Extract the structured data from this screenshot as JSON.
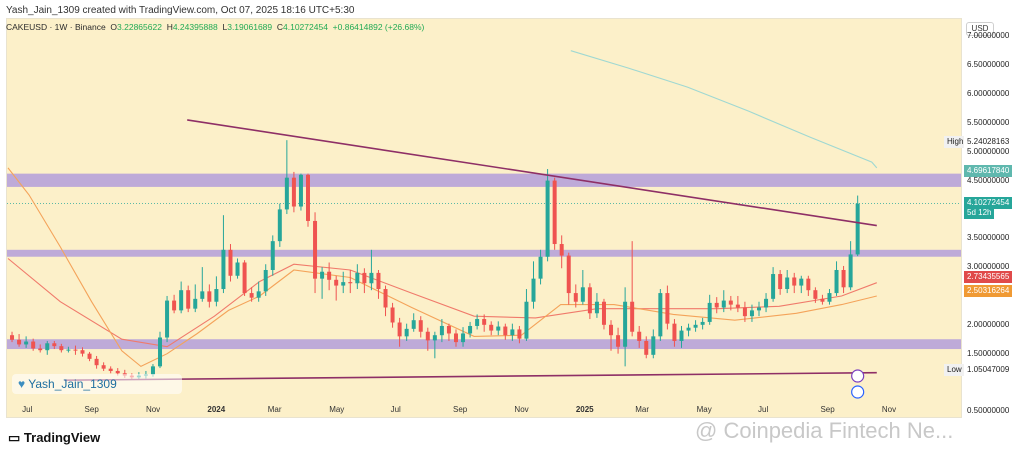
{
  "header": {
    "created_text": "Yash_Jain_1309 created with TradingView.com, Oct 07, 2025 18:16 UTC+5:30"
  },
  "ohlc": {
    "symbol": "CAKEUSD · 1W · Binance",
    "o_label": "O",
    "o": "3.22865622",
    "h_label": "H",
    "h": "4.24395888",
    "l_label": "L",
    "l": "3.19061689",
    "c_label": "C",
    "c": "4.10272454",
    "change": "+0.86414892 (+26.68%)"
  },
  "axis": {
    "currency": "USD",
    "ticks": [
      "7.00000000",
      "6.50000000",
      "6.00000000",
      "5.50000000",
      "5.00000000",
      "4.50000000",
      "3.50000000",
      "3.00000000",
      "2.00000000",
      "1.50000000",
      "0.50000000"
    ],
    "high_label": "High",
    "high_value": "5.24028163",
    "low_label": "Low",
    "low_value": "1.05047009",
    "ma200_value": "4.69617840",
    "price_value": "4.10272454",
    "countdown": "5d 12h",
    "ma50_value": "2.73435565",
    "ma20_value": "2.50316264"
  },
  "x_axis": [
    {
      "label": "Jul",
      "bold": false
    },
    {
      "label": "Sep",
      "bold": false
    },
    {
      "label": "Nov",
      "bold": false
    },
    {
      "label": "2024",
      "bold": true
    },
    {
      "label": "Mar",
      "bold": false
    },
    {
      "label": "May",
      "bold": false
    },
    {
      "label": "Jul",
      "bold": false
    },
    {
      "label": "Sep",
      "bold": false
    },
    {
      "label": "Nov",
      "bold": false
    },
    {
      "label": "2025",
      "bold": true
    },
    {
      "label": "Mar",
      "bold": false
    },
    {
      "label": "May",
      "bold": false
    },
    {
      "label": "Jul",
      "bold": false
    },
    {
      "label": "Sep",
      "bold": false
    },
    {
      "label": "Nov",
      "bold": false
    }
  ],
  "author_badge": "Yash_Jain_1309",
  "footer": {
    "logo": "TradingView",
    "watermark": "@ Coinpedia Fintech Ne..."
  },
  "colors": {
    "up": "#26a69a",
    "down": "#ef5350",
    "zone": "#b39ddb",
    "trend": "#8e2f66",
    "ma200": "#9fd8d2",
    "ma50": "#f07a6b",
    "ma20": "#f4a35a",
    "bg": "#fcf0c9"
  },
  "chart_data": {
    "type": "candlestick",
    "interval": "1W",
    "y_range": [
      0.5,
      7.3
    ],
    "x_range": [
      "2023-06-10",
      "2025-11-20"
    ],
    "last_price": 4.10272454,
    "zones": [
      {
        "from": 4.39,
        "to": 4.62
      },
      {
        "from": 3.18,
        "to": 3.3
      },
      {
        "from": 1.58,
        "to": 1.75
      }
    ],
    "trendlines": [
      {
        "from": {
          "date": "2023-12-05",
          "value": 5.55
        },
        "to": {
          "date": "2025-10-20",
          "value": 3.72
        }
      },
      {
        "from": {
          "date": "2023-08-05",
          "value": 1.04
        },
        "to": {
          "date": "2025-10-20",
          "value": 1.17
        }
      }
    ],
    "moving_averages": [
      {
        "name": "MA200",
        "points": [
          [
            "2024-12-20",
            6.75
          ],
          [
            "2025-02-15",
            6.45
          ],
          [
            "2025-04-15",
            6.12
          ],
          [
            "2025-06-15",
            5.7
          ],
          [
            "2025-08-15",
            5.25
          ],
          [
            "2025-10-15",
            4.82
          ],
          [
            "2025-10-20",
            4.72
          ]
        ]
      },
      {
        "name": "MA50",
        "points": [
          [
            "2023-06-10",
            3.15
          ],
          [
            "2023-08-01",
            2.4
          ],
          [
            "2023-10-01",
            1.75
          ],
          [
            "2023-11-15",
            1.62
          ],
          [
            "2024-01-01",
            2.15
          ],
          [
            "2024-02-15",
            2.75
          ],
          [
            "2024-03-20",
            3.05
          ],
          [
            "2024-05-15",
            2.95
          ],
          [
            "2024-07-15",
            2.55
          ],
          [
            "2024-09-15",
            2.15
          ],
          [
            "2024-11-15",
            2.12
          ],
          [
            "2025-01-15",
            2.28
          ],
          [
            "2025-03-15",
            2.28
          ],
          [
            "2025-05-15",
            2.28
          ],
          [
            "2025-07-15",
            2.32
          ],
          [
            "2025-09-15",
            2.5
          ],
          [
            "2025-10-20",
            2.73
          ]
        ]
      },
      {
        "name": "MA20",
        "points": [
          [
            "2023-06-10",
            4.72
          ],
          [
            "2023-07-01",
            4.25
          ],
          [
            "2023-08-01",
            3.35
          ],
          [
            "2023-09-01",
            2.4
          ],
          [
            "2023-10-01",
            1.55
          ],
          [
            "2023-10-20",
            1.28
          ],
          [
            "2023-11-15",
            1.5
          ],
          [
            "2023-12-15",
            1.85
          ],
          [
            "2024-01-15",
            2.25
          ],
          [
            "2024-02-15",
            2.5
          ],
          [
            "2024-03-20",
            2.95
          ],
          [
            "2024-05-15",
            2.82
          ],
          [
            "2024-07-15",
            2.3
          ],
          [
            "2024-09-15",
            1.8
          ],
          [
            "2024-11-01",
            1.82
          ],
          [
            "2024-12-10",
            2.35
          ],
          [
            "2025-02-01",
            2.35
          ],
          [
            "2025-04-01",
            2.18
          ],
          [
            "2025-06-01",
            2.08
          ],
          [
            "2025-08-01",
            2.2
          ],
          [
            "2025-09-15",
            2.35
          ],
          [
            "2025-10-20",
            2.5
          ]
        ]
      }
    ],
    "candles": [
      [
        "2023-06-14",
        1.82,
        1.74,
        1.88,
        1.7
      ],
      [
        "2023-06-21",
        1.74,
        1.66,
        1.84,
        1.62
      ],
      [
        "2023-06-28",
        1.66,
        1.71,
        1.8,
        1.6
      ],
      [
        "2023-07-05",
        1.71,
        1.59,
        1.76,
        1.55
      ],
      [
        "2023-07-12",
        1.59,
        1.56,
        1.66,
        1.52
      ],
      [
        "2023-07-19",
        1.56,
        1.68,
        1.72,
        1.48
      ],
      [
        "2023-07-26",
        1.68,
        1.63,
        1.72,
        1.58
      ],
      [
        "2023-08-02",
        1.63,
        1.56,
        1.67,
        1.52
      ],
      [
        "2023-08-09",
        1.56,
        1.57,
        1.62,
        1.52
      ],
      [
        "2023-08-16",
        1.57,
        1.56,
        1.64,
        1.48
      ],
      [
        "2023-08-23",
        1.56,
        1.5,
        1.61,
        1.45
      ],
      [
        "2023-08-30",
        1.5,
        1.41,
        1.53,
        1.37
      ],
      [
        "2023-09-06",
        1.41,
        1.3,
        1.46,
        1.24
      ],
      [
        "2023-09-13",
        1.3,
        1.24,
        1.35,
        1.2
      ],
      [
        "2023-09-20",
        1.24,
        1.2,
        1.28,
        1.16
      ],
      [
        "2023-09-27",
        1.2,
        1.16,
        1.25,
        1.12
      ],
      [
        "2023-10-04",
        1.16,
        1.12,
        1.22,
        1.08
      ],
      [
        "2023-10-11",
        1.12,
        1.09,
        1.16,
        1.05
      ],
      [
        "2023-10-18",
        1.09,
        1.12,
        1.18,
        1.05
      ],
      [
        "2023-10-25",
        1.12,
        1.14,
        1.2,
        1.07
      ],
      [
        "2023-11-01",
        1.14,
        1.28,
        1.32,
        1.1
      ],
      [
        "2023-11-08",
        1.28,
        1.78,
        1.88,
        1.25
      ],
      [
        "2023-11-15",
        1.78,
        2.42,
        2.5,
        1.7
      ],
      [
        "2023-11-22",
        2.42,
        2.25,
        2.52,
        2.2
      ],
      [
        "2023-11-29",
        2.25,
        2.6,
        2.75,
        2.2
      ],
      [
        "2023-12-06",
        2.6,
        2.28,
        2.68,
        2.22
      ],
      [
        "2023-12-13",
        2.28,
        2.45,
        2.7,
        2.22
      ],
      [
        "2023-12-20",
        2.45,
        2.58,
        3.0,
        2.4
      ],
      [
        "2023-12-27",
        2.58,
        2.4,
        2.7,
        2.3
      ],
      [
        "2024-01-03",
        2.4,
        2.62,
        2.84,
        2.32
      ],
      [
        "2024-01-10",
        2.62,
        3.3,
        3.9,
        2.55
      ],
      [
        "2024-01-17",
        3.3,
        2.85,
        3.4,
        2.75
      ],
      [
        "2024-01-24",
        2.85,
        3.08,
        3.15,
        2.8
      ],
      [
        "2024-01-31",
        3.08,
        2.55,
        3.12,
        2.5
      ],
      [
        "2024-02-07",
        2.55,
        2.47,
        2.65,
        2.4
      ],
      [
        "2024-02-14",
        2.47,
        2.58,
        2.75,
        2.4
      ],
      [
        "2024-02-21",
        2.58,
        2.95,
        3.05,
        2.5
      ],
      [
        "2024-02-28",
        2.95,
        3.45,
        3.55,
        2.85
      ],
      [
        "2024-03-06",
        3.45,
        4.0,
        4.1,
        3.35
      ],
      [
        "2024-03-13",
        4.0,
        4.55,
        5.2,
        3.92
      ],
      [
        "2024-03-20",
        4.55,
        4.05,
        4.65,
        3.95
      ],
      [
        "2024-03-27",
        4.05,
        4.6,
        4.62,
        3.98
      ],
      [
        "2024-04-03",
        4.6,
        3.8,
        4.62,
        3.7
      ],
      [
        "2024-04-10",
        3.8,
        2.8,
        3.95,
        2.55
      ],
      [
        "2024-04-17",
        2.8,
        2.92,
        3.0,
        2.45
      ],
      [
        "2024-04-24",
        2.92,
        2.78,
        3.08,
        2.6
      ],
      [
        "2024-05-01",
        2.78,
        2.68,
        2.85,
        2.42
      ],
      [
        "2024-05-08",
        2.68,
        2.74,
        2.92,
        2.55
      ],
      [
        "2024-05-15",
        2.74,
        2.72,
        2.95,
        2.55
      ],
      [
        "2024-05-22",
        2.72,
        2.9,
        3.05,
        2.62
      ],
      [
        "2024-05-29",
        2.9,
        2.72,
        2.98,
        2.55
      ],
      [
        "2024-06-05",
        2.72,
        2.9,
        3.3,
        2.6
      ],
      [
        "2024-06-12",
        2.9,
        2.62,
        2.95,
        2.45
      ],
      [
        "2024-06-19",
        2.62,
        2.3,
        2.68,
        2.15
      ],
      [
        "2024-06-26",
        2.3,
        2.04,
        2.38,
        1.95
      ],
      [
        "2024-07-03",
        2.04,
        1.8,
        2.12,
        1.62
      ],
      [
        "2024-07-10",
        1.8,
        1.93,
        2.02,
        1.72
      ],
      [
        "2024-07-17",
        1.93,
        2.08,
        2.2,
        1.88
      ],
      [
        "2024-07-24",
        2.08,
        1.88,
        2.15,
        1.78
      ],
      [
        "2024-07-31",
        1.88,
        1.73,
        1.95,
        1.55
      ],
      [
        "2024-08-07",
        1.73,
        1.82,
        1.88,
        1.42
      ],
      [
        "2024-08-14",
        1.82,
        1.98,
        2.1,
        1.7
      ],
      [
        "2024-08-21",
        1.98,
        1.85,
        2.02,
        1.72
      ],
      [
        "2024-08-28",
        1.85,
        1.7,
        1.92,
        1.62
      ],
      [
        "2024-09-04",
        1.7,
        1.85,
        1.96,
        1.62
      ],
      [
        "2024-09-11",
        1.85,
        1.98,
        2.05,
        1.78
      ],
      [
        "2024-09-18",
        1.98,
        2.1,
        2.18,
        1.92
      ],
      [
        "2024-09-25",
        2.1,
        2.0,
        2.18,
        1.88
      ],
      [
        "2024-10-02",
        2.0,
        1.9,
        2.06,
        1.82
      ],
      [
        "2024-10-09",
        1.9,
        1.97,
        2.06,
        1.82
      ],
      [
        "2024-10-16",
        1.97,
        1.82,
        2.02,
        1.74
      ],
      [
        "2024-10-23",
        1.82,
        1.92,
        2.02,
        1.72
      ],
      [
        "2024-10-30",
        1.92,
        1.76,
        1.98,
        1.68
      ],
      [
        "2024-11-06",
        1.76,
        2.4,
        2.62,
        1.72
      ],
      [
        "2024-11-13",
        2.4,
        2.8,
        3.1,
        2.28
      ],
      [
        "2024-11-20",
        2.8,
        3.18,
        3.3,
        2.7
      ],
      [
        "2024-11-27",
        3.18,
        4.5,
        4.7,
        3.1
      ],
      [
        "2024-12-04",
        4.5,
        3.4,
        4.55,
        3.3
      ],
      [
        "2024-12-11",
        3.4,
        3.2,
        3.55,
        2.98
      ],
      [
        "2024-12-18",
        3.2,
        2.55,
        3.25,
        2.35
      ],
      [
        "2024-12-25",
        2.55,
        2.4,
        2.7,
        2.3
      ],
      [
        "2025-01-01",
        2.4,
        2.65,
        2.95,
        2.35
      ],
      [
        "2025-01-08",
        2.65,
        2.2,
        2.72,
        2.1
      ],
      [
        "2025-01-15",
        2.2,
        2.4,
        2.55,
        2.12
      ],
      [
        "2025-01-22",
        2.4,
        2.0,
        2.45,
        1.92
      ],
      [
        "2025-01-29",
        2.0,
        1.82,
        2.08,
        1.55
      ],
      [
        "2025-02-05",
        1.82,
        1.62,
        1.95,
        1.5
      ],
      [
        "2025-02-12",
        1.62,
        2.4,
        2.65,
        1.28
      ],
      [
        "2025-02-19",
        2.4,
        1.88,
        3.45,
        1.8
      ],
      [
        "2025-02-26",
        1.88,
        1.72,
        1.98,
        1.6
      ],
      [
        "2025-03-05",
        1.72,
        1.48,
        1.8,
        1.42
      ],
      [
        "2025-03-12",
        1.48,
        1.8,
        1.92,
        1.42
      ],
      [
        "2025-03-19",
        1.8,
        2.55,
        2.62,
        1.72
      ],
      [
        "2025-03-26",
        2.55,
        2.02,
        2.68,
        1.92
      ],
      [
        "2025-04-02",
        2.02,
        1.72,
        2.1,
        1.62
      ],
      [
        "2025-04-09",
        1.72,
        1.9,
        1.98,
        1.6
      ],
      [
        "2025-04-16",
        1.9,
        1.95,
        2.02,
        1.8
      ],
      [
        "2025-04-23",
        1.95,
        2.0,
        2.08,
        1.88
      ],
      [
        "2025-04-30",
        2.0,
        2.05,
        2.12,
        1.92
      ],
      [
        "2025-05-07",
        2.05,
        2.38,
        2.52,
        2.0
      ],
      [
        "2025-05-14",
        2.38,
        2.3,
        2.48,
        2.2
      ],
      [
        "2025-05-21",
        2.3,
        2.42,
        2.6,
        2.22
      ],
      [
        "2025-05-28",
        2.42,
        2.35,
        2.5,
        2.25
      ],
      [
        "2025-06-04",
        2.35,
        2.3,
        2.5,
        2.22
      ],
      [
        "2025-06-11",
        2.3,
        2.15,
        2.4,
        2.05
      ],
      [
        "2025-06-18",
        2.15,
        2.25,
        2.35,
        2.05
      ],
      [
        "2025-06-25",
        2.25,
        2.3,
        2.4,
        2.15
      ],
      [
        "2025-07-02",
        2.3,
        2.45,
        2.55,
        2.22
      ],
      [
        "2025-07-09",
        2.45,
        2.88,
        3.0,
        2.4
      ],
      [
        "2025-07-16",
        2.88,
        2.62,
        2.95,
        2.52
      ],
      [
        "2025-07-23",
        2.62,
        2.82,
        2.95,
        2.55
      ],
      [
        "2025-07-30",
        2.82,
        2.68,
        2.9,
        2.55
      ],
      [
        "2025-08-06",
        2.68,
        2.8,
        2.85,
        2.55
      ],
      [
        "2025-08-13",
        2.8,
        2.6,
        2.85,
        2.5
      ],
      [
        "2025-08-20",
        2.6,
        2.45,
        2.65,
        2.38
      ],
      [
        "2025-08-27",
        2.45,
        2.4,
        2.52,
        2.35
      ],
      [
        "2025-09-03",
        2.4,
        2.55,
        2.62,
        2.35
      ],
      [
        "2025-09-10",
        2.55,
        2.95,
        3.1,
        2.5
      ],
      [
        "2025-09-17",
        2.95,
        2.65,
        3.02,
        2.55
      ],
      [
        "2025-09-24",
        2.65,
        3.22,
        3.45,
        2.6
      ],
      [
        "2025-10-01",
        3.22,
        4.1,
        4.24,
        3.19
      ]
    ]
  }
}
